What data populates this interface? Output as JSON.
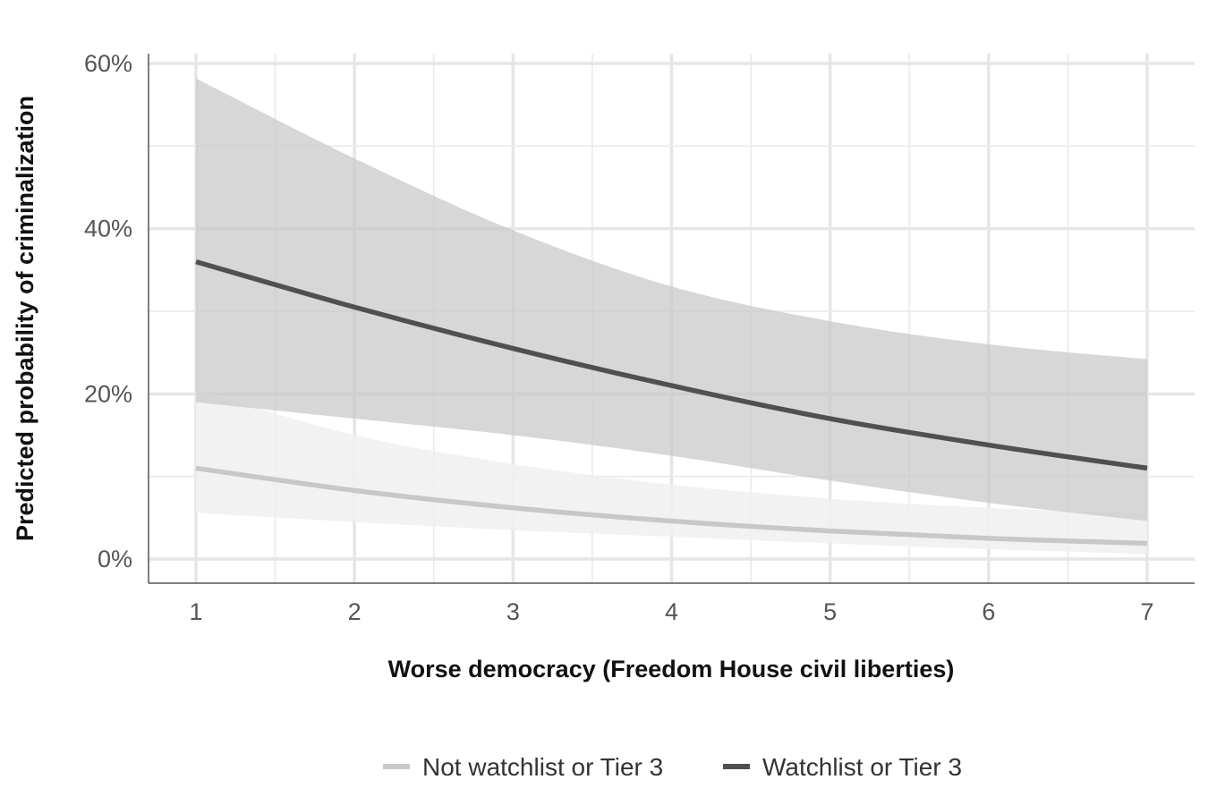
{
  "chart_data": {
    "type": "line",
    "title": "",
    "xlabel": "Worse democracy (Freedom House civil liberties)",
    "ylabel": "Predicted probability of criminalization",
    "xlim": [
      0.7,
      7.3
    ],
    "ylim": [
      -0.025,
      0.61
    ],
    "x_ticks": [
      1,
      2,
      3,
      4,
      5,
      6,
      7
    ],
    "x_tick_labels": [
      "1",
      "2",
      "3",
      "4",
      "5",
      "6",
      "7"
    ],
    "y_ticks": [
      0,
      0.2,
      0.4,
      0.6
    ],
    "y_tick_labels": [
      "0%",
      "20%",
      "40%",
      "60%"
    ],
    "grid": true,
    "legend_position": "bottom",
    "series": [
      {
        "name": "Not watchlist or Tier 3",
        "color": "#c8c8c8",
        "ribbon_color": "#f0f0f0",
        "x": [
          1,
          2,
          3,
          4,
          5,
          6,
          7
        ],
        "y": [
          0.11,
          0.083,
          0.062,
          0.046,
          0.034,
          0.025,
          0.019
        ],
        "lower": [
          0.056,
          0.045,
          0.035,
          0.027,
          0.019,
          0.012,
          0.006
        ],
        "upper": [
          0.205,
          0.15,
          0.115,
          0.09,
          0.073,
          0.062,
          0.055
        ]
      },
      {
        "name": "Watchlist or Tier 3",
        "color": "#505050",
        "ribbon_color": "#c8c8c8",
        "x": [
          1,
          2,
          3,
          4,
          5,
          6,
          7
        ],
        "y": [
          0.36,
          0.305,
          0.255,
          0.21,
          0.17,
          0.138,
          0.11
        ],
        "lower": [
          0.19,
          0.17,
          0.15,
          0.125,
          0.095,
          0.068,
          0.046
        ],
        "upper": [
          0.582,
          0.485,
          0.398,
          0.33,
          0.288,
          0.26,
          0.242
        ]
      }
    ]
  }
}
